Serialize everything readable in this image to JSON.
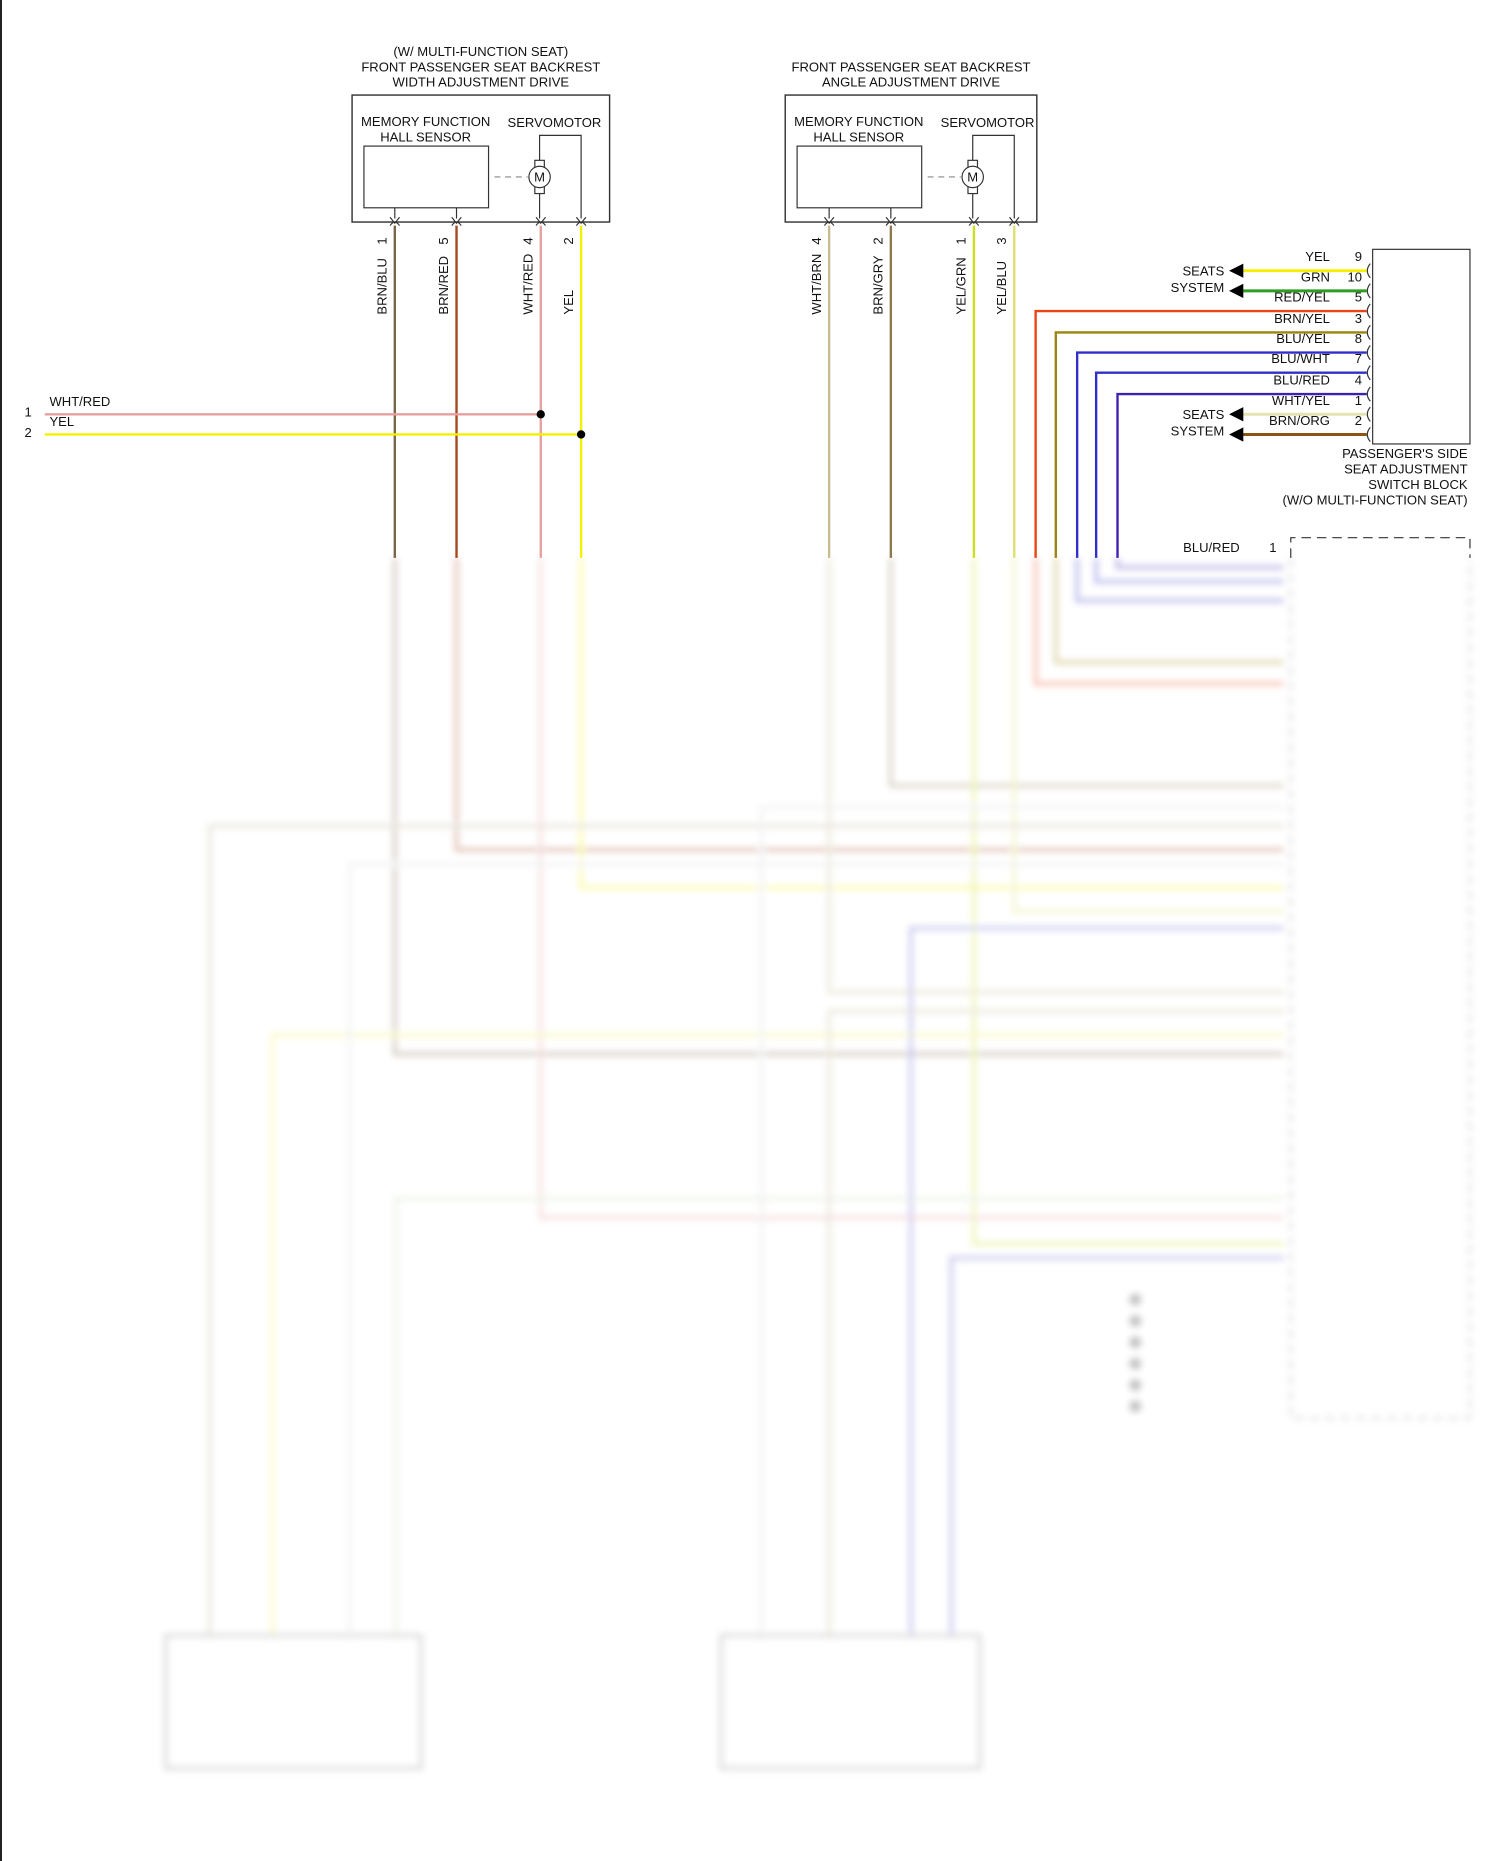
{
  "width_drive": {
    "title": [
      "(W/ MULTI-FUNCTION SEAT)",
      "FRONT PASSENGER SEAT BACKREST",
      "WIDTH ADJUSTMENT DRIVE"
    ],
    "sensor_label": [
      "MEMORY FUNCTION",
      "HALL SENSOR"
    ],
    "motor_label": "SERVOMOTOR",
    "motor_symbol": "M",
    "pins": [
      {
        "pin": "1",
        "wire": "BRN/BLU",
        "color": "#7a6448"
      },
      {
        "pin": "5",
        "wire": "BRN/RED",
        "color": "#a8461c"
      },
      {
        "pin": "4",
        "wire": "WHT/RED",
        "color": "#e6a0a0"
      },
      {
        "pin": "2",
        "wire": "YEL",
        "color": "#f4f000"
      }
    ]
  },
  "angle_drive": {
    "title": [
      "FRONT PASSENGER SEAT BACKREST",
      "ANGLE ADJUSTMENT DRIVE"
    ],
    "sensor_label": [
      "MEMORY FUNCTION",
      "HALL SENSOR"
    ],
    "motor_label": "SERVOMOTOR",
    "motor_symbol": "M",
    "pins": [
      {
        "pin": "4",
        "wire": "WHT/BRN",
        "color": "#c8bc90"
      },
      {
        "pin": "2",
        "wire": "BRN/GRY",
        "color": "#8c7a4a"
      },
      {
        "pin": "1",
        "wire": "YEL/GRN",
        "color": "#cce020"
      },
      {
        "pin": "3",
        "wire": "YEL/BLU",
        "color": "#e0e070"
      }
    ]
  },
  "left_connector": [
    {
      "pin": "1",
      "wire": "WHT/RED",
      "color": "#e6a0a0"
    },
    {
      "pin": "2",
      "wire": "YEL",
      "color": "#f4f000"
    }
  ],
  "switch_block": {
    "label": [
      "PASSENGER'S SIDE",
      "SEAT ADJUSTMENT",
      "SWITCH BLOCK",
      "(W/O MULTI-FUNCTION SEAT)"
    ],
    "seats_system_label": [
      "SEATS",
      "SYSTEM"
    ],
    "pins": [
      {
        "pin": "9",
        "wire": "YEL",
        "color": "#f4f000"
      },
      {
        "pin": "10",
        "wire": "GRN",
        "color": "#2e9e20"
      },
      {
        "pin": "5",
        "wire": "RED/YEL",
        "color": "#e84414"
      },
      {
        "pin": "3",
        "wire": "BRN/YEL",
        "color": "#9c8410"
      },
      {
        "pin": "8",
        "wire": "BLU/YEL",
        "color": "#3030c8"
      },
      {
        "pin": "7",
        "wire": "BLU/WHT",
        "color": "#3030c8"
      },
      {
        "pin": "4",
        "wire": "BLU/RED",
        "color": "#4020b0"
      },
      {
        "pin": "1",
        "wire": "WHT/YEL",
        "color": "#e4e4b0"
      },
      {
        "pin": "2",
        "wire": "BRN/ORG",
        "color": "#8a5414"
      }
    ]
  },
  "control_module": {
    "first_pin": {
      "pin": "1",
      "wire": "BLU/RED",
      "color": "#4020b0"
    }
  }
}
